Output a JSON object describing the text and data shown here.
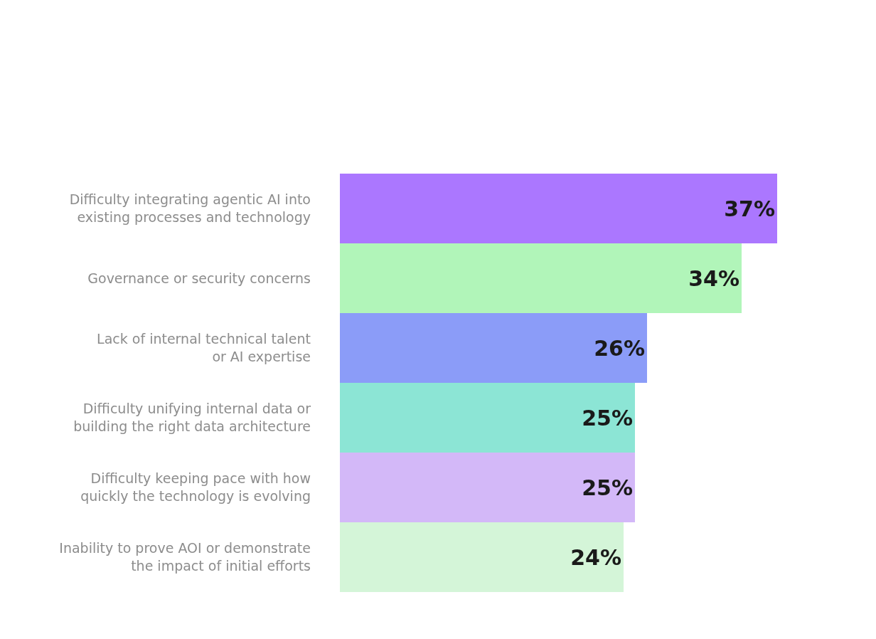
{
  "chart_data": {
    "type": "bar",
    "orientation": "horizontal",
    "categories": [
      "Difficulty integrating agentic AI into\nexisting processes and technology",
      "Governance or security concerns",
      "Lack of internal technical talent\nor AI expertise",
      "Difficulty unifying internal data or\nbuilding the right data architecture",
      "Difficulty keeping pace with how\nquickly the technology is evolving",
      "Inability to prove AOI or demonstrate\nthe impact of initial efforts"
    ],
    "values": [
      37,
      34,
      26,
      25,
      25,
      24
    ],
    "value_labels": [
      "37%",
      "34%",
      "26%",
      "25%",
      "25%",
      "24%"
    ],
    "colors": [
      "#ab77ff",
      "#b1f5b9",
      "#8b9cf8",
      "#8ce5d5",
      "#d3b8f8",
      "#d4f5d8"
    ],
    "tick_labels": "y"
  }
}
